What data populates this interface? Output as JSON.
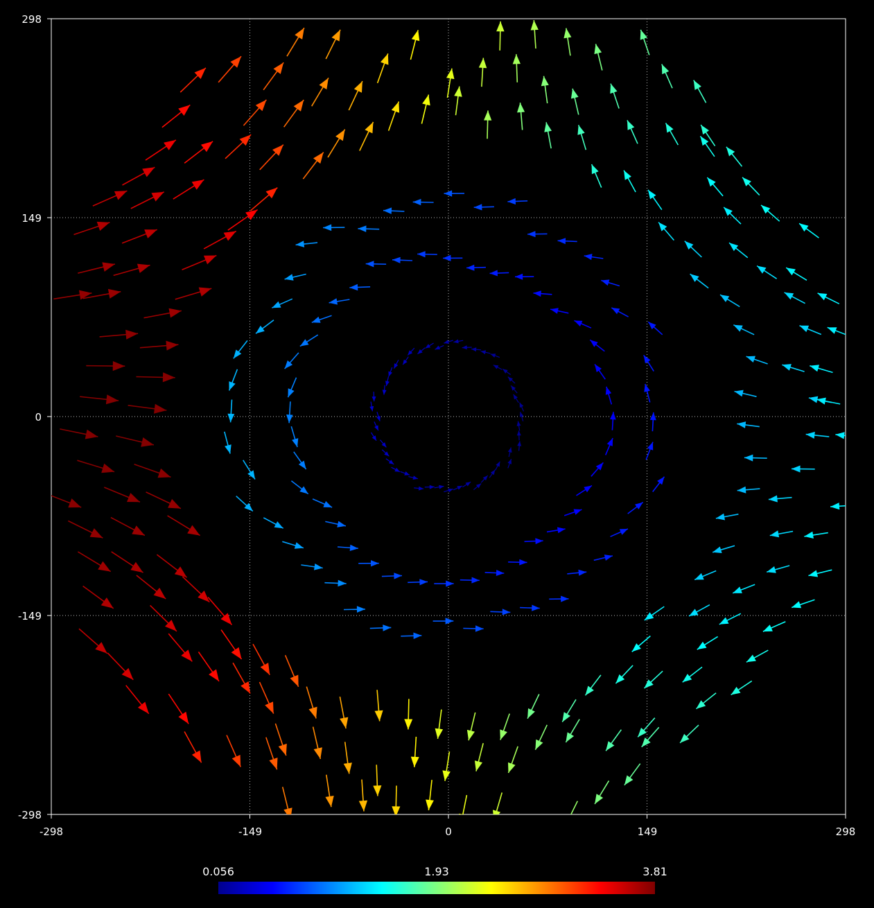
{
  "chart_data": {
    "type": "quiver",
    "title": "",
    "xlabel": "",
    "ylabel": "",
    "xlim": [
      -298,
      298
    ],
    "ylim": [
      -298,
      298
    ],
    "grid": true,
    "x_ticks": [
      "-298",
      "-149",
      "0",
      "149",
      "298"
    ],
    "y_ticks": [
      "298",
      "149",
      "0",
      "-149",
      "-298"
    ],
    "x_tick_values": [
      -298,
      -149,
      0,
      149,
      298
    ],
    "y_tick_values": [
      298,
      149,
      0,
      -149,
      -298
    ],
    "colorbar": {
      "min": 0.056,
      "mid": 1.93,
      "max": 3.81,
      "labels": [
        "0.056",
        "1.93",
        "3.81"
      ],
      "colormap": "jet",
      "placement": "bottom"
    },
    "field": {
      "description_of_rings": "vector field sampled on concentric rings; magnitude increases with radius and toward the left side",
      "rings": [
        {
          "radius": 55,
          "count": 48,
          "magnitude_min": 0.06,
          "magnitude_max": 0.3
        },
        {
          "radius": 120,
          "count": 40,
          "magnitude_min": 0.5,
          "magnitude_max": 1.0
        },
        {
          "radius": 160,
          "count": 44,
          "magnitude_min": 0.6,
          "magnitude_max": 1.2
        },
        {
          "radius": 225,
          "count": 60,
          "magnitude_min": 1.2,
          "magnitude_max": 3.8
        },
        {
          "radius": 265,
          "count": 66,
          "magnitude_min": 1.3,
          "magnitude_max": 3.8
        },
        {
          "radius": 300,
          "count": 72,
          "magnitude_min": 1.4,
          "magnitude_max": 3.81
        }
      ]
    }
  }
}
